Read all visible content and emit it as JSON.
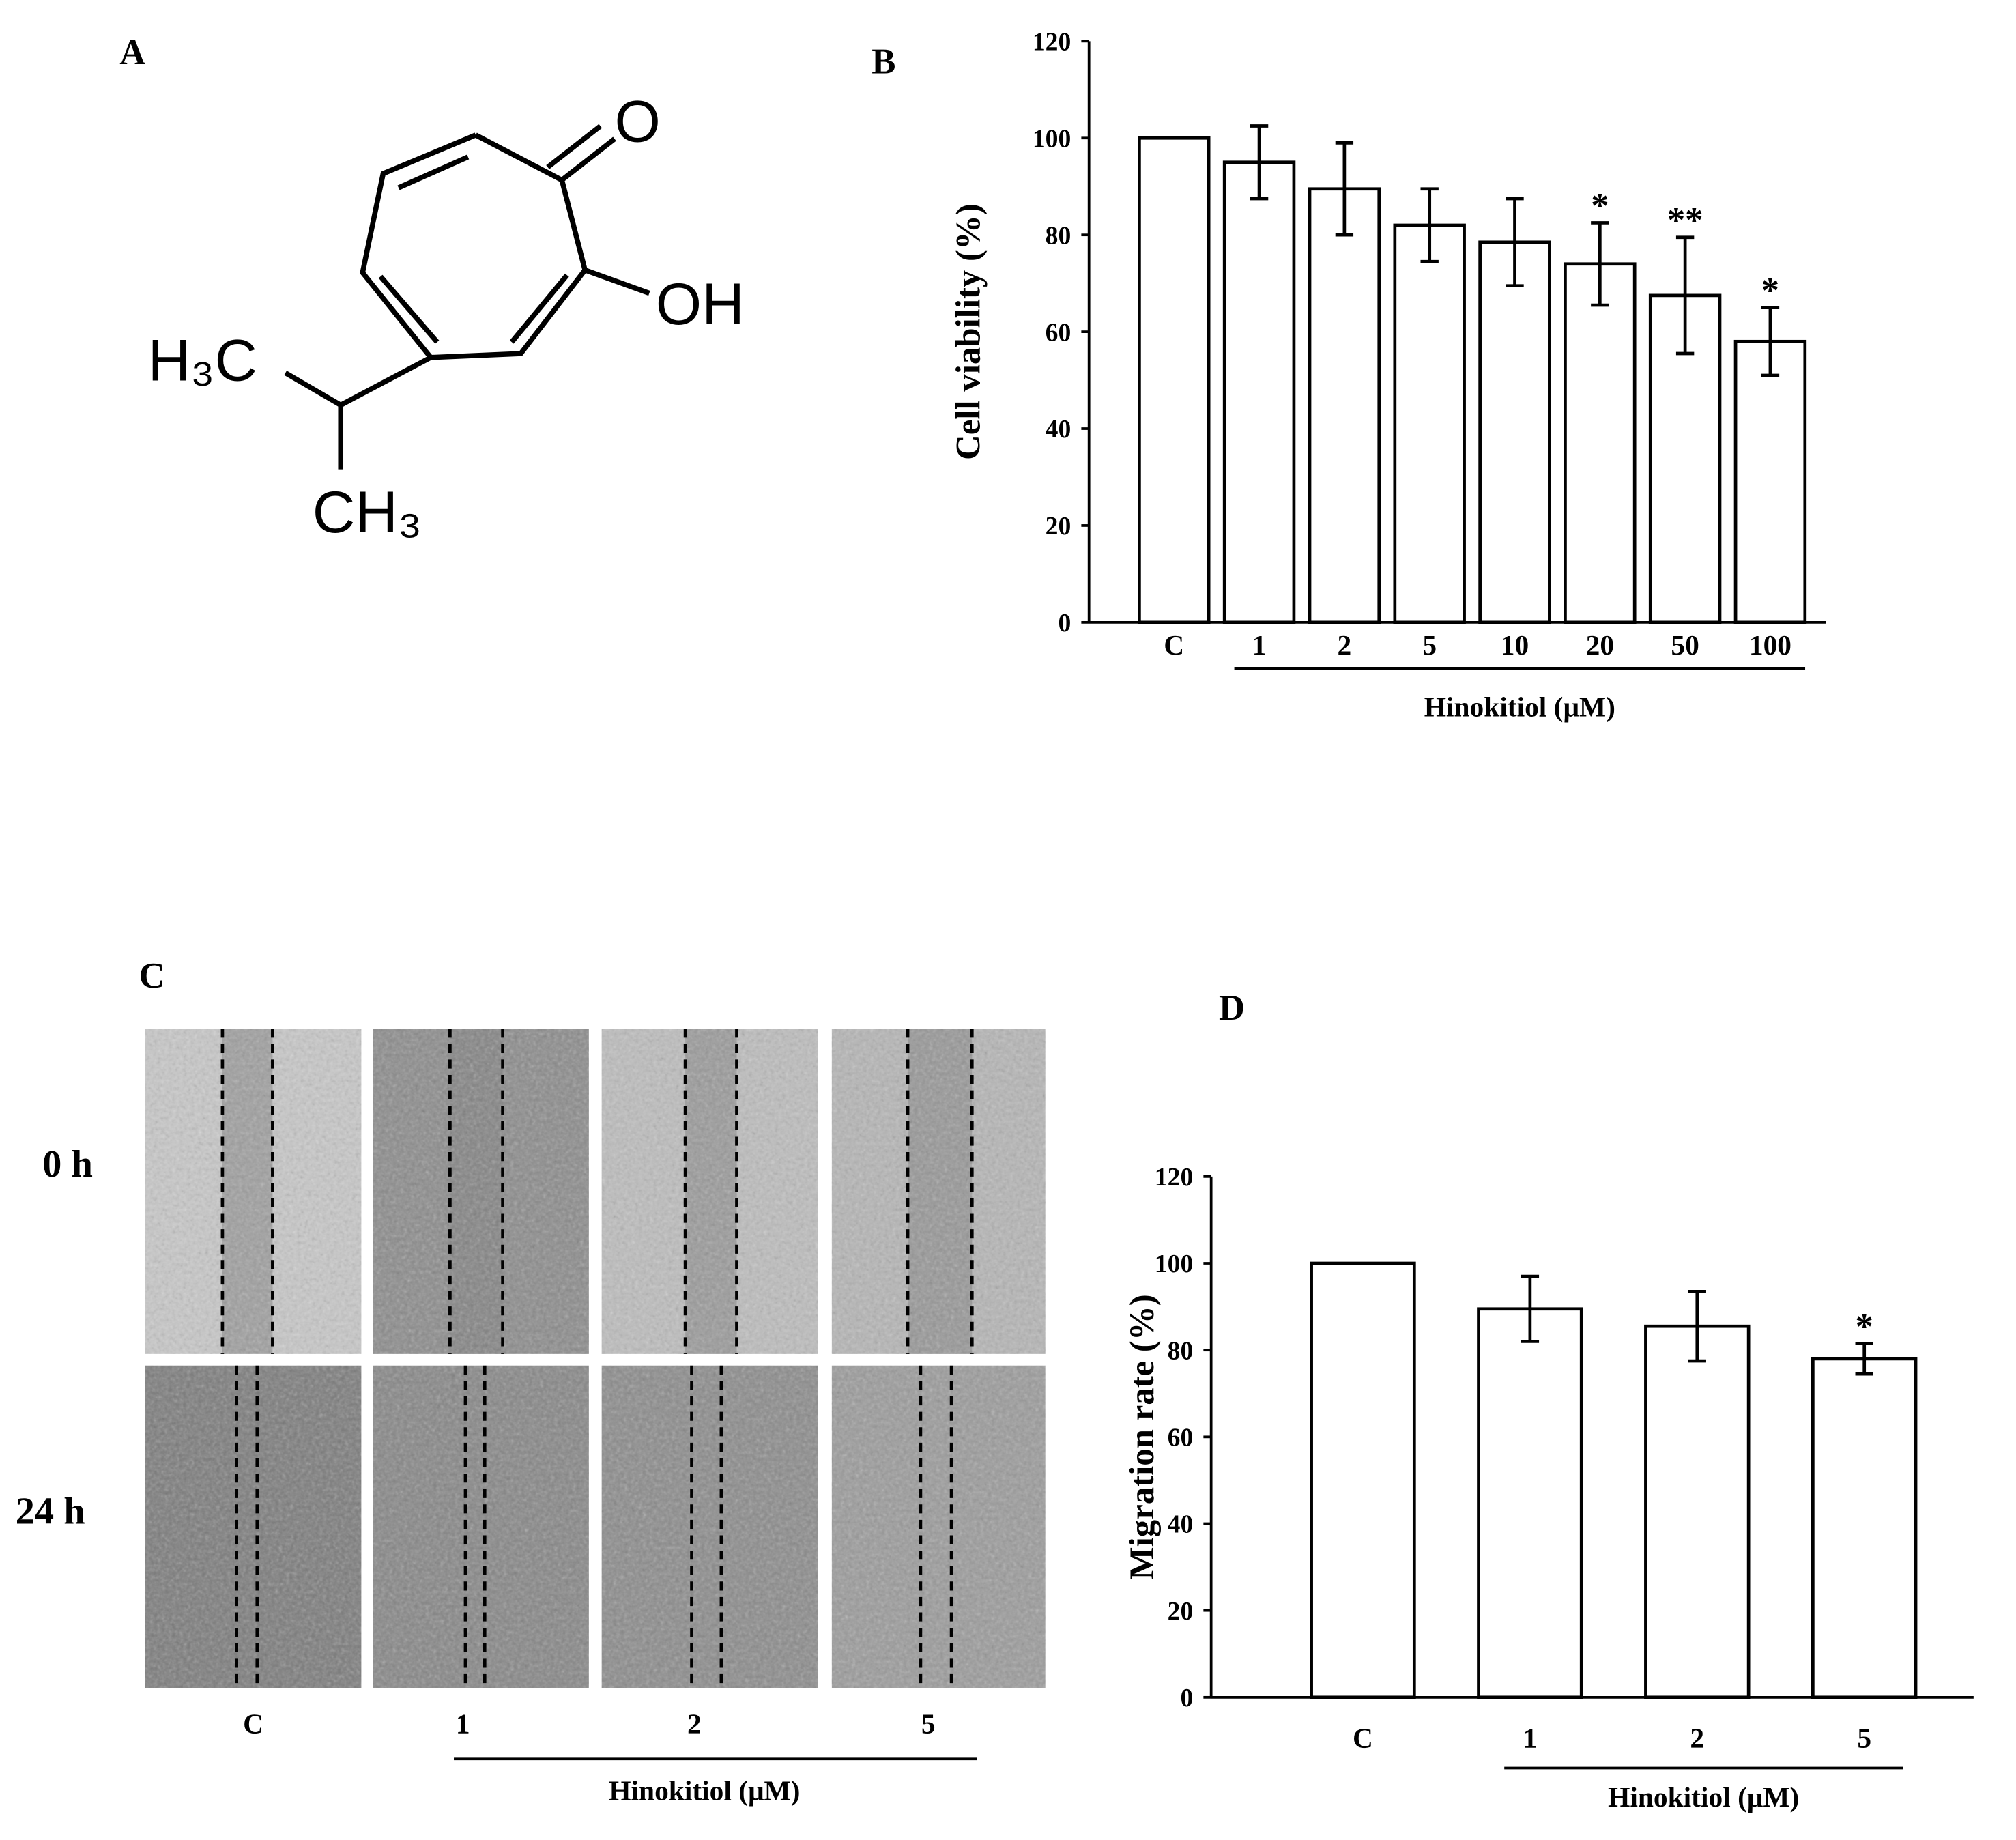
{
  "panel_labels": [
    "A",
    "B",
    "C",
    "D"
  ],
  "structure": {
    "labels": [
      "O",
      "OH",
      "H₃C",
      "CH₃"
    ]
  },
  "wound_assay": {
    "rows": [
      "0 h",
      "24 h"
    ],
    "columns": [
      "C",
      "1",
      "2",
      "5"
    ],
    "xlabel": "Hinokitiol (μM)"
  },
  "chart_data": [
    {
      "type": "bar",
      "ylabel": "Cell viability (%)",
      "xlabel": "Hinokitiol (μM)",
      "categories": [
        "C",
        "1",
        "2",
        "5",
        "10",
        "20",
        "50",
        "100"
      ],
      "values": [
        100,
        95,
        89.5,
        82,
        78.5,
        74,
        67.5,
        58
      ],
      "errors": [
        null,
        7.5,
        9.5,
        7.5,
        9,
        8.5,
        12,
        7
      ],
      "significance": [
        null,
        null,
        null,
        null,
        null,
        "*",
        "**",
        "*"
      ],
      "color": "#ffffff",
      "ylim": [
        0,
        120
      ],
      "yticks": [
        0,
        20,
        40,
        60,
        80,
        100,
        120
      ]
    },
    {
      "type": "bar",
      "ylabel": "Migration rate (%)",
      "xlabel": "Hinokitiol (μM)",
      "categories": [
        "C",
        "1",
        "2",
        "5"
      ],
      "values": [
        100,
        89.5,
        85.5,
        78
      ],
      "errors": [
        null,
        7.5,
        8,
        3.5
      ],
      "significance": [
        null,
        null,
        null,
        "*"
      ],
      "color": "#ffffff",
      "ylim": [
        0,
        120
      ],
      "yticks": [
        0,
        20,
        40,
        60,
        80,
        100,
        120
      ]
    }
  ]
}
